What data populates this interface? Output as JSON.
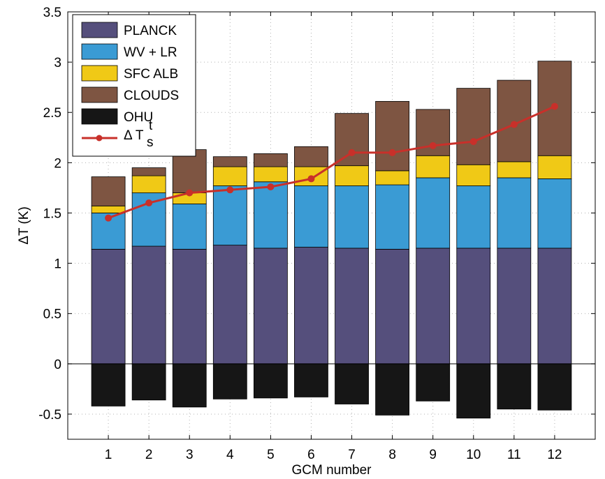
{
  "chart_data": {
    "type": "bar",
    "stacked": true,
    "xlabel": "GCM number",
    "ylabel": "ΔT (K)",
    "categories": [
      "1",
      "2",
      "3",
      "4",
      "5",
      "6",
      "7",
      "8",
      "9",
      "10",
      "11",
      "12"
    ],
    "ylim": [
      -0.75,
      3.5
    ],
    "yticks": [
      "-0.5",
      "0",
      "0.5",
      "1",
      "1.5",
      "2",
      "2.5",
      "3",
      "3.5"
    ],
    "grid": true,
    "legend_position": "top-left",
    "series": [
      {
        "name": "PLANCK",
        "color": "#554f7c",
        "values": [
          1.14,
          1.17,
          1.14,
          1.18,
          1.15,
          1.16,
          1.15,
          1.14,
          1.15,
          1.15,
          1.15,
          1.15
        ]
      },
      {
        "name": "WV + LR",
        "color": "#3a9bd4",
        "values": [
          0.36,
          0.53,
          0.45,
          0.59,
          0.66,
          0.61,
          0.62,
          0.64,
          0.7,
          0.62,
          0.7,
          0.69
        ]
      },
      {
        "name": "SFC ALB",
        "color": "#f0c916",
        "values": [
          0.07,
          0.17,
          0.11,
          0.19,
          0.15,
          0.19,
          0.2,
          0.14,
          0.22,
          0.21,
          0.16,
          0.23
        ]
      },
      {
        "name": "CLOUDS",
        "color": "#7e5542",
        "values": [
          0.29,
          0.08,
          0.43,
          0.1,
          0.13,
          0.2,
          0.52,
          0.69,
          0.46,
          0.76,
          0.81,
          0.94
        ]
      },
      {
        "name": "OHU",
        "color": "#161616",
        "values": [
          -0.42,
          -0.36,
          -0.43,
          -0.35,
          -0.34,
          -0.33,
          -0.4,
          -0.51,
          -0.37,
          -0.54,
          -0.45,
          -0.46
        ]
      }
    ],
    "line": {
      "name_main": "Δ T",
      "name_sup": "t",
      "name_sub": "s",
      "color": "#c8302a",
      "values": [
        1.45,
        1.6,
        1.7,
        1.73,
        1.76,
        1.84,
        2.1,
        2.1,
        2.17,
        2.21,
        2.38,
        2.56
      ]
    }
  }
}
